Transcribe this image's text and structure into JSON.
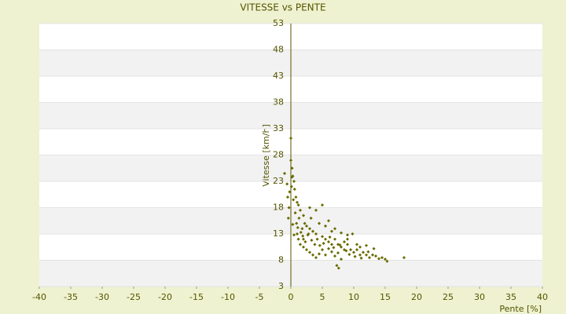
{
  "chart_data": {
    "type": "scatter",
    "title": "VITESSE vs PENTE",
    "x_label": "Pente [%]",
    "y_label": "Vitesse [km/h]",
    "x": [
      0,
      0,
      0.2,
      0.3,
      0.5,
      0.1,
      -0.2,
      -0.5,
      -0.3,
      -0.4,
      0.6,
      0.8,
      1,
      1.2,
      0.7,
      1.5,
      1.3,
      2,
      2.2,
      1.8,
      2.5,
      3,
      2.8,
      3.5,
      4,
      4.2,
      3.8,
      5,
      5.5,
      6,
      6.5,
      7,
      7.5,
      8,
      8.5,
      9,
      9.5,
      10,
      10.5,
      11,
      11.5,
      12,
      12.5,
      13,
      13.5,
      14,
      14.5,
      15,
      15.3,
      18,
      1,
      1.2,
      1.5,
      2,
      2.5,
      3,
      3.5,
      4,
      4.5,
      5,
      5.5,
      6,
      6.5,
      7,
      7.5,
      8,
      7.3,
      7.6,
      8.5,
      9,
      9.8,
      10.5,
      11,
      12,
      3,
      4,
      5,
      3.2,
      4.5,
      5.5,
      6,
      6.5,
      7,
      8,
      9,
      2,
      2.3,
      2.7,
      3.3,
      4.6,
      5.2,
      6.2,
      6.8,
      7.8,
      8.8,
      9.3,
      10.2,
      11.2,
      12.3,
      13.2,
      0.4,
      0.9,
      1.1,
      1.6,
      1.9,
      0.5,
      0.3,
      -0.6,
      0.2,
      -1
    ],
    "values": [
      31.2,
      27,
      25.5,
      24,
      23,
      22,
      21,
      20,
      18,
      16,
      21.5,
      20,
      19,
      18.5,
      17,
      17.5,
      16,
      16.5,
      15,
      14,
      14.5,
      14,
      13,
      13.5,
      13,
      12,
      11,
      12.5,
      12,
      11.5,
      11,
      12,
      11,
      10.5,
      10,
      11,
      10,
      9.5,
      10,
      9,
      9.5,
      9,
      8.5,
      9,
      8.8,
      8.3,
      8.5,
      8.2,
      7.8,
      8.5,
      13,
      12,
      11,
      10.5,
      10,
      9.5,
      9,
      8.5,
      9.2,
      10,
      9,
      10.2,
      9.6,
      8.8,
      9.4,
      8.2,
      7,
      6.5,
      11.5,
      12,
      13,
      11,
      10.5,
      10.8,
      18,
      17.5,
      18.5,
      16,
      15,
      14.5,
      15.5,
      13.5,
      14,
      13.2,
      12.8,
      12,
      11.5,
      12.8,
      11.8,
      10.8,
      11.2,
      12.4,
      10.4,
      10.9,
      9.8,
      9.1,
      8.7,
      8.4,
      9.6,
      10.2,
      19.5,
      15,
      14.2,
      13.3,
      12.6,
      12.8,
      14.8,
      22.5,
      23.8,
      24.5
    ],
    "color": "#6b6b00",
    "xlim": [
      -40,
      40
    ],
    "xticks": [
      -40,
      -35,
      -30,
      -25,
      -20,
      -15,
      -10,
      -5,
      0,
      5,
      10,
      15,
      20,
      25,
      30,
      35,
      40
    ],
    "ylim": [
      3,
      53
    ],
    "yticks": [
      3,
      8,
      13,
      18,
      23,
      28,
      33,
      38,
      43,
      48,
      53
    ],
    "grid": true
  }
}
